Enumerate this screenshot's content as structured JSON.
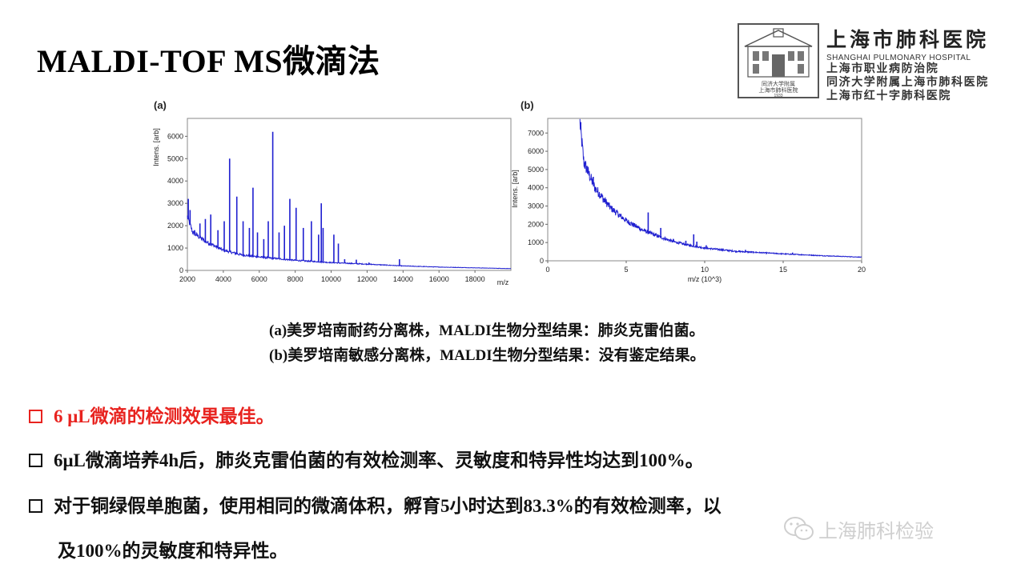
{
  "slide": {
    "title": "MALDI-TOF MS微滴法"
  },
  "logo": {
    "name_cn": "上海市肺科医院",
    "name_en": "SHANGHAI PULMONARY HOSPITAL",
    "line1": "上海市职业病防治院",
    "line2": "同济大学附属上海市肺科医院",
    "line3": "上海市红十字肺科医院",
    "seal_line1": "同济大学附属",
    "seal_line2": "上海市肺科医院",
    "seal_year": "1933"
  },
  "caption": {
    "line_a": "(a)美罗培南耐药分离株，MALDI生物分型结果：肺炎克雷伯菌。",
    "line_b": "(b)美罗培南敏感分离株，MALDI生物分型结果：没有鉴定结果。"
  },
  "bullets": {
    "b1": "6 μL微滴的检测效果最佳。",
    "b2": "6μL微滴培养4h后，肺炎克雷伯菌的有效检测率、灵敏度和特异性均达到100%。",
    "b3_line1": "对于铜绿假单胞菌，使用相同的微滴体积，孵育5小时达到83.3%的有效检测率，以",
    "b3_line2": "及100%的灵敏度和特异性。"
  },
  "watermark": {
    "text": "上海肺科检验"
  },
  "colors": {
    "spectrum": "#1f1fd0",
    "accent_red": "#e8231f"
  },
  "chart_data": [
    {
      "type": "line",
      "panel_label": "(a)",
      "xlabel": "m/z",
      "ylabel": "Intens. [arb]",
      "xlim": [
        2000,
        20000
      ],
      "ylim": [
        0,
        6800
      ],
      "xticks": [
        2000,
        4000,
        6000,
        8000,
        10000,
        12000,
        14000,
        16000,
        18000
      ],
      "yticks": [
        0,
        1000,
        2000,
        3000,
        4000,
        5000,
        6000
      ],
      "baseline": [
        [
          2000,
          2400
        ],
        [
          2300,
          1700
        ],
        [
          3000,
          1300
        ],
        [
          4000,
          900
        ],
        [
          5000,
          700
        ],
        [
          6000,
          600
        ],
        [
          8000,
          450
        ],
        [
          10000,
          350
        ],
        [
          12000,
          280
        ],
        [
          14000,
          200
        ],
        [
          16000,
          150
        ],
        [
          20000,
          80
        ]
      ],
      "peaks": [
        [
          2050,
          3200
        ],
        [
          2150,
          2700
        ],
        [
          2400,
          1800
        ],
        [
          2700,
          2100
        ],
        [
          3000,
          2300
        ],
        [
          3300,
          2500
        ],
        [
          3700,
          1800
        ],
        [
          4050,
          2200
        ],
        [
          4350,
          5000
        ],
        [
          4750,
          3300
        ],
        [
          5100,
          2200
        ],
        [
          5450,
          1900
        ],
        [
          5650,
          3700
        ],
        [
          5900,
          1700
        ],
        [
          6250,
          1400
        ],
        [
          6500,
          2200
        ],
        [
          6750,
          6200
        ],
        [
          7100,
          1700
        ],
        [
          7400,
          2000
        ],
        [
          7700,
          3200
        ],
        [
          8050,
          2800
        ],
        [
          8450,
          1900
        ],
        [
          8900,
          2200
        ],
        [
          9300,
          1600
        ],
        [
          9450,
          3000
        ],
        [
          9550,
          1900
        ],
        [
          10150,
          1600
        ],
        [
          10400,
          1200
        ],
        [
          10750,
          500
        ],
        [
          11400,
          480
        ],
        [
          12100,
          350
        ],
        [
          13800,
          500
        ]
      ]
    },
    {
      "type": "line",
      "panel_label": "(b)",
      "xlabel": "m/z (10^3)",
      "ylabel": "Intens. [arb]",
      "xlim": [
        0,
        20
      ],
      "ylim": [
        0,
        7800
      ],
      "xticks": [
        0,
        5,
        10,
        15,
        20
      ],
      "yticks": [
        0,
        1000,
        2000,
        3000,
        4000,
        5000,
        6000,
        7000
      ],
      "baseline": [
        [
          2.05,
          7600
        ],
        [
          2.3,
          5400
        ],
        [
          3.0,
          4000
        ],
        [
          4.0,
          2900
        ],
        [
          5.0,
          2200
        ],
        [
          6.0,
          1700
        ],
        [
          7.0,
          1350
        ],
        [
          8.0,
          1050
        ],
        [
          9.0,
          850
        ],
        [
          10.0,
          700
        ],
        [
          12.0,
          520
        ],
        [
          15.0,
          380
        ],
        [
          17.5,
          280
        ],
        [
          20.0,
          200
        ]
      ],
      "peaks": [
        [
          2.1,
          7600
        ],
        [
          2.5,
          5200
        ],
        [
          2.9,
          4600
        ],
        [
          3.3,
          3600
        ],
        [
          3.6,
          3200
        ],
        [
          4.1,
          2700
        ],
        [
          4.6,
          2400
        ],
        [
          5.3,
          2100
        ],
        [
          5.8,
          1900
        ],
        [
          6.4,
          2650
        ],
        [
          6.9,
          1500
        ],
        [
          7.2,
          1800
        ],
        [
          8.0,
          1200
        ],
        [
          8.8,
          1100
        ],
        [
          9.3,
          1450
        ],
        [
          9.5,
          1050
        ],
        [
          10.1,
          850
        ],
        [
          12.6,
          600
        ],
        [
          15.6,
          450
        ]
      ]
    }
  ]
}
